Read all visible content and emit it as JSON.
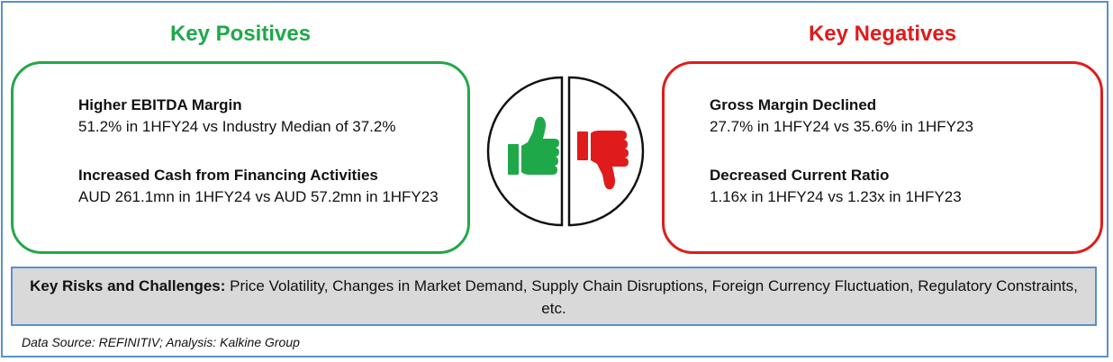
{
  "positives": {
    "heading": "Key Positives",
    "items": [
      {
        "title": "Higher EBITDA Margin",
        "detail": "51.2% in 1HFY24 vs Industry Median of 37.2%"
      },
      {
        "title": "Increased Cash from Financing Activities",
        "detail": "AUD 261.1mn in 1HFY24 vs AUD 57.2mn in 1HFY23"
      }
    ],
    "color": "#1fa84a"
  },
  "negatives": {
    "heading": "Key Negatives",
    "items": [
      {
        "title": "Gross Margin Declined",
        "detail": "27.7% in 1HFY24 vs 35.6% in 1HFY23"
      },
      {
        "title": "Decreased Current Ratio",
        "detail": "1.16x in 1HFY24 vs 1.23x in 1HFY23"
      }
    ],
    "color": "#e01b1b"
  },
  "center_icons": [
    "thumbs-up-icon",
    "thumbs-down-icon"
  ],
  "risks": {
    "label": "Key Risks and Challenges:",
    "text": " Price Volatility, Changes in Market Demand, Supply Chain Disruptions, Foreign Currency Fluctuation, Regulatory Constraints, etc."
  },
  "source": "Data Source: REFINITIV; Analysis: Kalkine Group"
}
